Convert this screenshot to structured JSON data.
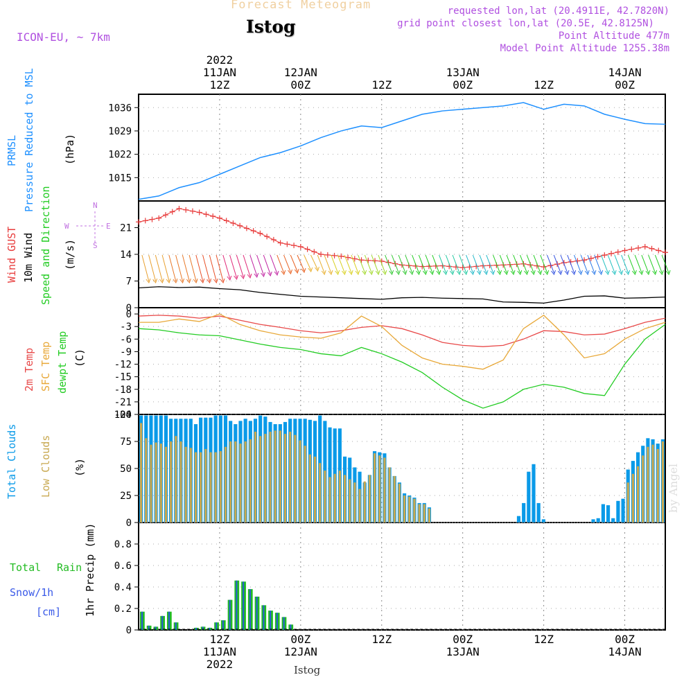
{
  "header": {
    "title": "Forecast Meteogram",
    "location": "Istog",
    "model": "ICON-EU, ~ 7km",
    "requested": "requested lon,lat (20.4911E, 42.7820N)",
    "grid_point": "grid point closest lon,lat (20.5E, 42.8125N)",
    "point_altitude": "Point Altitude 477m",
    "model_altitude": "Model Point Altitude 1255.38m",
    "credit": "by Angel",
    "footer_location": "Istog"
  },
  "colors": {
    "pressure": "#1e90ff",
    "gust": "#e83c3c",
    "wind": "#000000",
    "t2m": "#e84848",
    "sfc": "#e8a838",
    "dewpt": "#22cc22",
    "total_clouds": "#0a9ae8",
    "low_clouds": "#c8a850",
    "rain": "#22bb22",
    "snow": "#3a5ae8",
    "label": "#b050e0"
  },
  "chart_data": [
    {
      "type": "line",
      "title": "PRMSL Pressure Reduced to MSL",
      "ylabel": "(hPa)",
      "ylim": [
        1008,
        1040
      ],
      "yticks": [
        1015,
        1022,
        1029,
        1036
      ],
      "x_hours": [
        0,
        3,
        6,
        9,
        12,
        15,
        18,
        21,
        24,
        27,
        30,
        33,
        36,
        39,
        42,
        45,
        48,
        51,
        54,
        57,
        60,
        63,
        66,
        69,
        72,
        75,
        78
      ],
      "series": [
        {
          "name": "PRMSL",
          "values": [
            1008.5,
            1009.5,
            1012,
            1013.5,
            1016,
            1018.5,
            1021,
            1022.5,
            1024.5,
            1027,
            1029,
            1030.5,
            1030,
            1032,
            1034,
            1035,
            1035.5,
            1036,
            1036.5,
            1037.5,
            1035.5,
            1037,
            1036.5,
            1034,
            1032.5,
            1031.2,
            1031
          ]
        }
      ]
    },
    {
      "type": "line",
      "title": "Wind GUST / 10m Wind Speed and Direction",
      "ylabel": "(m/s)",
      "ylim": [
        0,
        28
      ],
      "yticks": [
        0,
        7,
        14,
        21
      ],
      "compass": [
        "N",
        "W",
        "E",
        "S"
      ],
      "x_hours": [
        0,
        3,
        6,
        9,
        12,
        15,
        18,
        21,
        24,
        27,
        30,
        33,
        36,
        39,
        42,
        45,
        48,
        51,
        54,
        57,
        60,
        63,
        66,
        69,
        72,
        75,
        78
      ],
      "series": [
        {
          "name": "Wind GUST",
          "values": [
            22.5,
            23.5,
            26,
            25,
            23.5,
            21.5,
            19.5,
            17,
            16,
            14,
            13.5,
            12.5,
            12.2,
            11.2,
            10.8,
            11,
            10.5,
            11,
            11.2,
            11.5,
            10.7,
            11.8,
            12.5,
            13.8,
            15,
            16,
            14.5
          ]
        },
        {
          "name": "10m Wind",
          "values": [
            5.2,
            5.5,
            5.3,
            5.4,
            5,
            4.7,
            4,
            3.5,
            3,
            2.8,
            2.6,
            2.4,
            2.2,
            2.6,
            2.7,
            2.5,
            2.4,
            2.3,
            1.5,
            1.4,
            1.2,
            2,
            3,
            3.1,
            2.5,
            2.6,
            2.8
          ]
        }
      ]
    },
    {
      "type": "line",
      "title": "2m Temp / SFC Temp / dewpt Temp",
      "ylabel": "(C)",
      "ylim": [
        -24,
        1.5
      ],
      "yticks": [
        0,
        -3,
        -6,
        -9,
        -12,
        -15,
        -18,
        -21,
        -24
      ],
      "x_hours": [
        0,
        3,
        6,
        9,
        12,
        15,
        18,
        21,
        24,
        27,
        30,
        33,
        36,
        39,
        42,
        45,
        48,
        51,
        54,
        57,
        60,
        63,
        66,
        69,
        72,
        75,
        78
      ],
      "series": [
        {
          "name": "2m Temp",
          "values": [
            -0.5,
            -0.3,
            -0.5,
            -1,
            -0.5,
            -1.5,
            -2.5,
            -3.2,
            -4,
            -4.5,
            -4,
            -3.2,
            -2.8,
            -3.5,
            -5,
            -6.8,
            -7.5,
            -7.8,
            -7.5,
            -6,
            -4,
            -4.2,
            -5,
            -4.8,
            -3.5,
            -2,
            -1
          ]
        },
        {
          "name": "SFC Temp",
          "values": [
            -2,
            -2,
            -1.2,
            -1.8,
            0,
            -2.5,
            -4,
            -5,
            -5.5,
            -5.8,
            -4.5,
            -0.5,
            -3,
            -7.5,
            -10.5,
            -12,
            -12.5,
            -13.2,
            -11,
            -3.5,
            -0.3,
            -5,
            -10.5,
            -9.5,
            -6,
            -3.5,
            -2
          ]
        },
        {
          "name": "dewpt Temp",
          "values": [
            -3.5,
            -3.8,
            -4.5,
            -5,
            -5.2,
            -6.2,
            -7.2,
            -8,
            -8.5,
            -9.5,
            -10,
            -8,
            -9.5,
            -11.5,
            -14,
            -17.5,
            -20.5,
            -22.5,
            -21,
            -18,
            -16.8,
            -17.5,
            -19,
            -19.5,
            -12,
            -6,
            -2.5
          ]
        }
      ]
    },
    {
      "type": "bar",
      "title": "Total Clouds / Low Clouds",
      "ylabel": "(%)",
      "ylim": [
        0,
        100
      ],
      "yticks": [
        0,
        25,
        50,
        75,
        100
      ],
      "series": [
        {
          "name": "Total Clouds",
          "values": [
            99,
            99,
            99,
            99,
            99,
            99,
            96,
            96,
            96,
            96,
            96,
            91,
            97,
            97,
            97,
            99,
            99,
            99,
            94,
            91,
            94,
            96,
            94,
            96,
            99,
            98,
            93,
            91,
            91,
            93,
            96,
            96,
            96,
            96,
            95,
            94,
            99,
            94,
            88,
            87,
            87,
            61,
            60,
            51,
            47,
            37,
            44,
            66,
            65,
            64,
            51,
            43,
            37,
            27,
            25,
            23,
            18,
            18,
            14,
            0,
            0,
            0,
            0,
            0,
            0,
            0,
            0,
            0,
            0,
            0,
            0,
            0,
            0,
            0,
            0,
            0,
            6,
            18,
            47,
            54,
            18,
            3,
            0,
            0,
            0,
            0,
            0,
            0,
            0,
            0,
            0,
            3,
            4,
            17,
            16,
            4,
            20,
            22,
            49,
            57,
            65,
            71,
            78,
            77,
            73,
            77
          ]
        },
        {
          "name": "Low Clouds",
          "values": [
            92,
            78,
            72,
            74,
            73,
            70,
            75,
            80,
            75,
            70,
            69,
            65,
            65,
            68,
            65,
            65,
            66,
            70,
            75,
            75,
            73,
            75,
            77,
            84,
            80,
            82,
            84,
            85,
            85,
            82,
            84,
            81,
            76,
            71,
            63,
            61,
            55,
            48,
            42,
            45,
            48,
            44,
            40,
            37,
            31,
            38,
            44,
            64,
            62,
            60,
            51,
            43,
            36,
            25,
            24,
            22,
            17,
            17,
            13,
            0,
            0,
            0,
            0,
            0,
            0,
            0,
            0,
            0,
            0,
            0,
            0,
            0,
            0,
            0,
            0,
            0,
            0,
            0,
            0,
            0,
            0,
            0,
            0,
            0,
            0,
            0,
            0,
            0,
            0,
            0,
            0,
            0,
            0,
            0,
            0,
            0,
            0,
            0,
            37,
            45,
            52,
            62,
            70,
            72,
            68,
            75
          ]
        }
      ]
    },
    {
      "type": "bar",
      "title": "1hr Precip (mm)",
      "ylabel": "1hr Precip (mm)",
      "ylim": [
        0,
        1.0
      ],
      "yticks": [
        0,
        0.2,
        0.4,
        0.6,
        0.8
      ],
      "legend": [
        "Total",
        "Rain",
        "Snow/1h",
        "[cm]"
      ],
      "series": [
        {
          "name": "Total Rain",
          "values": [
            0.17,
            0.04,
            0.03,
            0.13,
            0.17,
            0.07,
            0,
            0,
            0.02,
            0.03,
            0.02,
            0.07,
            0.09,
            0.28,
            0.46,
            0.45,
            0.38,
            0.31,
            0.23,
            0.18,
            0.16,
            0.12,
            0.05,
            0,
            0,
            0,
            0,
            0,
            0,
            0,
            0,
            0,
            0,
            0,
            0,
            0,
            0,
            0,
            0,
            0,
            0,
            0,
            0,
            0,
            0,
            0,
            0,
            0,
            0,
            0,
            0,
            0,
            0,
            0,
            0,
            0,
            0,
            0,
            0,
            0,
            0,
            0,
            0,
            0,
            0,
            0,
            0,
            0,
            0,
            0,
            0,
            0,
            0,
            0,
            0,
            0,
            0,
            0
          ]
        }
      ]
    },
    {
      "type": "axis",
      "top_labels": [
        {
          "hour": 12,
          "lines": [
            "2022",
            "11JAN",
            "12Z"
          ]
        },
        {
          "hour": 24,
          "lines": [
            "12JAN",
            "00Z"
          ]
        },
        {
          "hour": 36,
          "lines": [
            "12Z"
          ]
        },
        {
          "hour": 48,
          "lines": [
            "13JAN",
            "00Z"
          ]
        },
        {
          "hour": 60,
          "lines": [
            "12Z"
          ]
        },
        {
          "hour": 72,
          "lines": [
            "14JAN",
            "00Z"
          ]
        }
      ],
      "bottom_labels": [
        {
          "hour": 12,
          "lines": [
            "12Z",
            "11JAN",
            "2022"
          ]
        },
        {
          "hour": 24,
          "lines": [
            "00Z",
            "12JAN"
          ]
        },
        {
          "hour": 36,
          "lines": [
            "12Z"
          ]
        },
        {
          "hour": 48,
          "lines": [
            "00Z",
            "13JAN"
          ]
        },
        {
          "hour": 60,
          "lines": [
            "12Z"
          ]
        },
        {
          "hour": 72,
          "lines": [
            "00Z",
            "14JAN"
          ]
        }
      ]
    }
  ]
}
